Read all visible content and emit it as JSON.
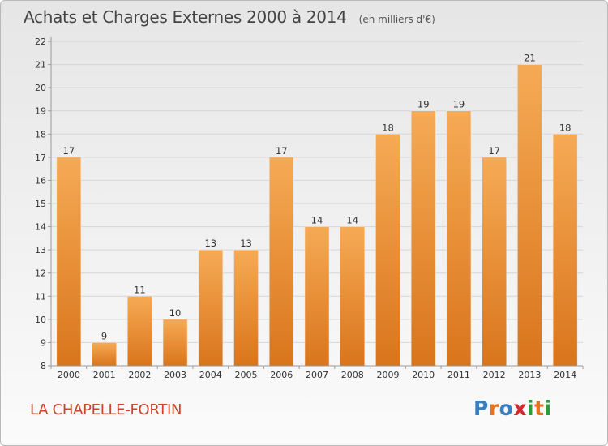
{
  "header": {
    "title": "Achats et Charges Externes 2000 à 2014",
    "unit": "(en milliers d'€)"
  },
  "footer": {
    "commune": "LA CHAPELLE-FORTIN",
    "logo": [
      "P",
      "r",
      "o",
      "x",
      "i",
      "t",
      "i"
    ],
    "logo_colors": [
      "#3a7fc4",
      "#e8731f",
      "#3a7fc4",
      "#d9262a",
      "#2e9b3a",
      "#e8731f",
      "#2e9b3a"
    ]
  },
  "chart_data": {
    "type": "bar",
    "title": "Achats et Charges Externes 2000 à 2014",
    "categories": [
      "2000",
      "2001",
      "2002",
      "2003",
      "2004",
      "2005",
      "2006",
      "2007",
      "2008",
      "2009",
      "2010",
      "2011",
      "2012",
      "2013",
      "2014"
    ],
    "values": [
      17,
      9,
      11,
      10,
      13,
      13,
      17,
      14,
      14,
      18,
      19,
      19,
      17,
      21,
      18
    ],
    "ylim": [
      8,
      22
    ],
    "yticks": [
      8,
      9,
      10,
      11,
      12,
      13,
      14,
      15,
      16,
      17,
      18,
      19,
      20,
      21,
      22
    ],
    "grid": true,
    "bar_color_top": "#f6aa55",
    "bar_color_bottom": "#d9751c",
    "xlabel": "",
    "ylabel": ""
  }
}
